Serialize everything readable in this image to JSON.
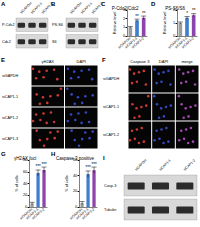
{
  "chart_data": [
    {
      "panel": "C",
      "type": "bar",
      "title": "P-Cdc2/Cdc2",
      "y_label": "Relative level",
      "categories": [
        "siGAPDH",
        "siCAP1-1",
        "siCAP1-2"
      ],
      "values": [
        1,
        1.8,
        2.1
      ],
      "errors": [
        0.1,
        0.15,
        0.2
      ],
      "significance": [
        null,
        "**",
        "**"
      ],
      "colors": [
        "#9e9e9e",
        "#3f7fd0",
        "#8e44ad"
      ],
      "ylim": [
        0,
        3
      ],
      "yticks": [
        0,
        1,
        2,
        3
      ],
      "grid": false
    },
    {
      "panel": "D",
      "type": "bar",
      "title": "PS-S6/S6",
      "y_label": "Relative level",
      "categories": [
        "siGAPDH",
        "siCAP1-1",
        "siCAP1-2"
      ],
      "values": [
        1,
        1.4,
        1.6
      ],
      "errors": [
        0.08,
        0.1,
        0.12
      ],
      "significance": [
        null,
        "*",
        "**"
      ],
      "colors": [
        "#9e9e9e",
        "#3f7fd0",
        "#8e44ad"
      ],
      "ylim": [
        0,
        2
      ],
      "yticks": [
        0,
        1,
        2
      ],
      "grid": false
    },
    {
      "panel": "G",
      "type": "bar",
      "title": "γH2AX foci",
      "y_label": "% of cells",
      "categories": [
        "siGAPDH",
        "siCAP1-1",
        "siCAP1-2"
      ],
      "values": [
        6,
        58,
        63
      ],
      "errors": [
        2,
        5,
        5
      ],
      "significance": [
        null,
        "***",
        "***"
      ],
      "colors": [
        "#9e9e9e",
        "#3f7fd0",
        "#8e44ad"
      ],
      "ylim": [
        0,
        80
      ],
      "yticks": [
        0,
        20,
        40,
        60,
        80
      ],
      "grid": false
    },
    {
      "panel": "H",
      "type": "bar",
      "title": "Caspase 3 positive",
      "y_label": "% of cells",
      "categories": [
        "siGAPDH",
        "siCAP1-1",
        "siCAP1-2"
      ],
      "values": [
        5,
        42,
        47
      ],
      "errors": [
        2,
        4,
        4
      ],
      "significance": [
        null,
        "***",
        "***"
      ],
      "colors": [
        "#9e9e9e",
        "#3f7fd0",
        "#8e44ad"
      ],
      "ylim": [
        0,
        60
      ],
      "yticks": [
        0,
        20,
        40,
        60
      ],
      "grid": false
    }
  ],
  "blots": [
    {
      "panel": "A",
      "lanes": [
        "siGAPDH",
        "siCAP1-1",
        "siCAP1-2"
      ],
      "rows": [
        "P-Cdc2",
        "Cdc2"
      ]
    },
    {
      "panel": "B",
      "lanes": [
        "siGAPDH",
        "siCAP1-1",
        "siCAP1-2"
      ],
      "rows": [
        "PS-S6",
        "S6"
      ]
    },
    {
      "panel": "I",
      "lanes": [
        "siGAPDH",
        "siCAP1-1",
        "siCAP1-2"
      ],
      "rows": [
        "Casp-3",
        "Tubulin"
      ]
    }
  ],
  "images": [
    {
      "panel": "E",
      "columns": [
        "γH2AX",
        "DAPI"
      ],
      "channel_colors": [
        "#e0403a",
        "#3a4fd0"
      ],
      "rows": [
        "siGAPDH",
        "siCAP1-1",
        "siCAP1-2",
        "siCAP1-3"
      ]
    },
    {
      "panel": "F",
      "columns": [
        "Caspase 3",
        "DAPI",
        "merge"
      ],
      "channel_colors": [
        "#e0403a",
        "#3a4fd0",
        "#b04fc0"
      ],
      "rows": [
        "siGAPDH",
        "siCAP1-1",
        "siCAP1-2"
      ]
    }
  ]
}
